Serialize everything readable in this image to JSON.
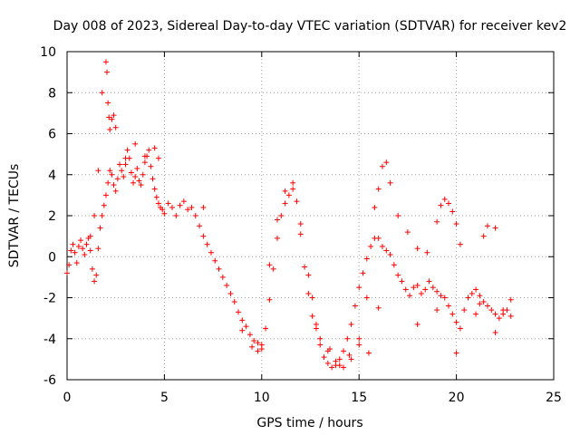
{
  "chart_data": {
    "type": "scatter",
    "title": "Day 008 of 2023, Sidereal Day-to-day VTEC variation (SDTVAR) for receiver kev2",
    "xlabel": "GPS time / hours",
    "ylabel": "SDTVAR / TECUs",
    "xlim": [
      0,
      25
    ],
    "ylim": [
      -6,
      10
    ],
    "xticks": [
      0,
      5,
      10,
      15,
      20,
      25
    ],
    "yticks": [
      -6,
      -4,
      -2,
      0,
      2,
      4,
      6,
      8,
      10
    ],
    "xtick_labels": [
      "0",
      "5",
      "10",
      "15",
      "20",
      "25"
    ],
    "ytick_labels": [
      "-6",
      "-4",
      "-2",
      "0",
      "2",
      "4",
      "6",
      "8",
      "10"
    ],
    "grid": true,
    "marker": "+",
    "marker_color": "#ff0000",
    "series": [
      {
        "name": "SDTVAR",
        "x": [
          0.0,
          0.1,
          0.2,
          0.3,
          0.4,
          0.5,
          0.6,
          0.7,
          0.8,
          0.9,
          1.0,
          1.1,
          1.2,
          1.3,
          1.4,
          1.5,
          1.6,
          1.7,
          1.8,
          1.9,
          2.0,
          2.1,
          2.2,
          2.3,
          2.4,
          2.5,
          2.6,
          2.7,
          2.8,
          2.9,
          3.0,
          3.1,
          3.2,
          3.3,
          3.4,
          3.5,
          3.6,
          3.7,
          3.8,
          3.9,
          4.0,
          4.1,
          4.2,
          4.3,
          4.4,
          4.5,
          4.6,
          4.7,
          4.8,
          4.9,
          5.0,
          5.2,
          5.4,
          5.6,
          5.8,
          6.0,
          6.2,
          6.4,
          6.6,
          6.8,
          7.0,
          7.2,
          7.4,
          7.6,
          7.8,
          8.0,
          8.2,
          8.4,
          8.6,
          8.8,
          9.0,
          9.2,
          9.4,
          9.6,
          9.8,
          10.0,
          10.2,
          10.4,
          10.6,
          10.8,
          11.0,
          11.2,
          11.4,
          11.6,
          11.8,
          12.0,
          12.2,
          12.4,
          12.6,
          12.8,
          13.0,
          13.2,
          13.4,
          13.6,
          13.8,
          14.0,
          14.2,
          14.4,
          14.6,
          14.8,
          15.0,
          15.2,
          15.4,
          15.6,
          15.8,
          16.0,
          16.2,
          16.4,
          16.6,
          16.8,
          17.0,
          17.2,
          17.4,
          17.6,
          17.8,
          18.0,
          18.2,
          18.4,
          18.6,
          18.8,
          19.0,
          19.2,
          19.4,
          19.6,
          19.8,
          20.0,
          20.2,
          20.4,
          20.6,
          20.8,
          21.0,
          21.2,
          21.4,
          21.6,
          21.8,
          22.0,
          22.2,
          22.4,
          22.6,
          22.8,
          1.2,
          1.4,
          1.6,
          1.8,
          2.0,
          2.05,
          2.1,
          2.15,
          2.2,
          2.3,
          2.4,
          2.5,
          3.0,
          3.5,
          4.0,
          4.5,
          4.7,
          7.0,
          9.0,
          9.5,
          9.8,
          10.0,
          10.4,
          10.8,
          11.2,
          11.6,
          12.0,
          12.4,
          12.6,
          12.8,
          13.0,
          13.4,
          13.8,
          14.2,
          14.6,
          15.0,
          15.4,
          15.8,
          16.0,
          16.2,
          16.4,
          16.6,
          17.0,
          17.5,
          18.0,
          18.5,
          19.0,
          19.2,
          19.4,
          19.6,
          19.8,
          20.0,
          20.2,
          21.0,
          21.2,
          21.4,
          21.6,
          22.0,
          22.4,
          22.8,
          13.5,
          14.0,
          14.5,
          15.0,
          15.5,
          16.0,
          18.0,
          19.0,
          20.0,
          22.0
        ],
        "y": [
          -0.8,
          -0.4,
          0.3,
          0.6,
          0.2,
          -0.3,
          0.5,
          0.8,
          0.4,
          0.1,
          0.6,
          0.9,
          0.3,
          -0.6,
          -1.2,
          -0.9,
          0.4,
          1.4,
          2.0,
          2.5,
          3.0,
          3.6,
          4.2,
          4.0,
          3.5,
          3.2,
          3.8,
          4.5,
          4.2,
          3.9,
          4.5,
          5.2,
          4.8,
          4.1,
          3.6,
          3.9,
          4.3,
          3.7,
          3.5,
          4.0,
          4.6,
          4.9,
          5.2,
          4.4,
          3.8,
          3.3,
          2.9,
          2.6,
          2.4,
          2.3,
          2.1,
          2.6,
          2.4,
          2.0,
          2.5,
          2.7,
          2.3,
          2.4,
          2.0,
          1.5,
          1.0,
          0.6,
          0.2,
          -0.2,
          -0.6,
          -1.0,
          -1.4,
          -1.8,
          -2.2,
          -2.7,
          -3.1,
          -3.4,
          -3.8,
          -4.1,
          -4.2,
          -4.3,
          -3.5,
          -2.1,
          -0.6,
          0.9,
          2.0,
          2.6,
          3.0,
          3.3,
          2.7,
          1.1,
          -0.5,
          -1.8,
          -2.9,
          -3.5,
          -4.3,
          -4.9,
          -5.2,
          -5.4,
          -5.3,
          -5.0,
          -4.6,
          -4.0,
          -3.3,
          -2.4,
          -1.5,
          -0.8,
          -0.1,
          0.5,
          0.9,
          0.9,
          0.5,
          0.3,
          0.1,
          -0.4,
          -0.9,
          -1.2,
          -1.6,
          -1.9,
          -1.5,
          -1.4,
          -1.8,
          -1.6,
          -1.2,
          -1.5,
          -1.7,
          -1.9,
          -2.0,
          -2.4,
          -2.8,
          -3.2,
          -3.5,
          -2.6,
          -2.0,
          -1.8,
          -1.6,
          -1.9,
          -2.2,
          -2.4,
          -2.6,
          -2.8,
          -3.0,
          -2.8,
          -2.6,
          -2.9,
          1.0,
          2.0,
          4.2,
          8.0,
          9.5,
          9.0,
          7.5,
          6.8,
          6.2,
          6.7,
          6.9,
          6.3,
          4.8,
          5.5,
          4.9,
          5.3,
          4.8,
          2.4,
          -3.6,
          -4.4,
          -4.6,
          -4.5,
          -0.4,
          1.8,
          3.2,
          3.6,
          1.6,
          -0.9,
          -2.0,
          -3.3,
          -4.0,
          -4.6,
          -5.1,
          -5.4,
          -5.0,
          -4.3,
          -2.0,
          2.4,
          3.3,
          4.4,
          4.6,
          3.6,
          2.0,
          1.2,
          0.4,
          0.2,
          1.7,
          2.5,
          2.8,
          2.6,
          2.2,
          1.6,
          0.6,
          -2.8,
          -2.3,
          1.0,
          1.5,
          1.4,
          -2.6,
          -2.1,
          -4.5,
          -5.3,
          -4.8,
          -4.0,
          -4.7,
          -2.5,
          -3.3,
          -2.6,
          -4.7,
          -3.7
        ]
      }
    ]
  }
}
